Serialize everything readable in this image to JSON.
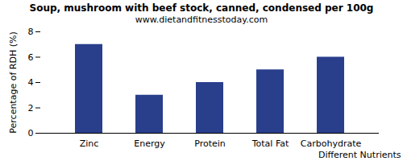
{
  "chart_data": {
    "type": "bar",
    "title": "Soup, mushroom with beef stock, canned, condensed per 100g",
    "subtitle": "www.dietandfitnesstoday.com",
    "x_label": "Different Nutrients",
    "y_label": "Percentage of RDH (%)",
    "categories": [
      "Zinc",
      "Energy",
      "Protein",
      "Total Fat",
      "Carbohydrate"
    ],
    "values": [
      7,
      3,
      4,
      5,
      6
    ],
    "color": "#293f8c",
    "ylim": [
      0,
      8
    ],
    "yticks": [
      0,
      2,
      4,
      6,
      8
    ],
    "grid": false
  }
}
